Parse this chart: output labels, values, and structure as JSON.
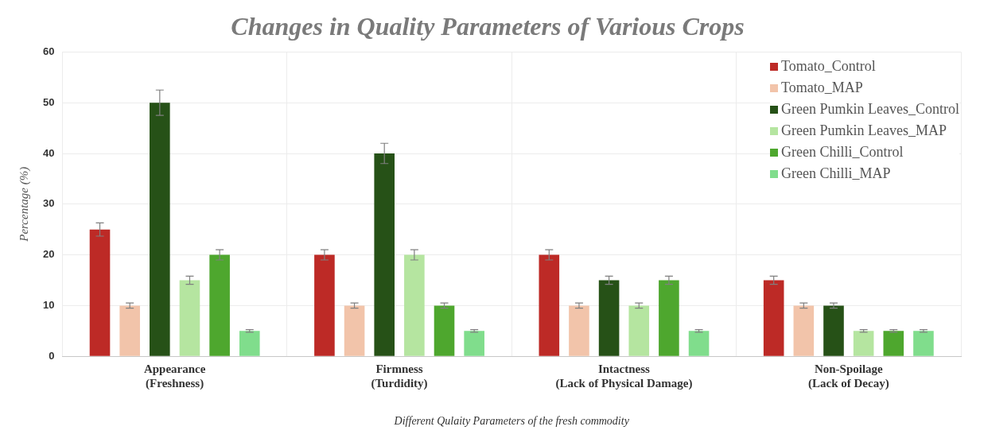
{
  "chart_data": {
    "type": "bar",
    "title": "Changes in Quality Parameters of Various Crops",
    "xlabel": "Different Qulaity Parameters of the fresh commodity",
    "ylabel": "Percentage (%)",
    "categories": [
      "Appearance\n(Freshness)",
      "Firmness\n(Turdidity)",
      "Intactness\n(Lack of Physical Damage)",
      "Non-Spoilage\n(Lack of Decay)"
    ],
    "series": [
      {
        "name": "Tomato_Control",
        "color": "#bd2a26",
        "values": [
          25,
          20,
          20,
          15
        ],
        "errors": [
          1.3,
          1,
          1,
          0.8
        ]
      },
      {
        "name": "Tomato_MAP",
        "color": "#f2c4aa",
        "values": [
          10,
          10,
          10,
          10
        ],
        "errors": [
          0.5,
          0.5,
          0.5,
          0.5
        ]
      },
      {
        "name": "Green Pumkin Leaves_Control",
        "color": "#265117",
        "values": [
          50,
          40,
          15,
          10
        ],
        "errors": [
          2.5,
          2,
          0.8,
          0.5
        ]
      },
      {
        "name": "Green Pumkin Leaves_MAP",
        "color": "#b5e5a0",
        "values": [
          15,
          20,
          10,
          5
        ],
        "errors": [
          0.8,
          1,
          0.5,
          0.25
        ]
      },
      {
        "name": "Green Chilli_Control",
        "color": "#4ea72e",
        "values": [
          20,
          10,
          15,
          5
        ],
        "errors": [
          1,
          0.5,
          0.8,
          0.25
        ]
      },
      {
        "name": "Green Chilli_MAP",
        "color": "#80dd8c",
        "values": [
          5,
          5,
          5,
          5
        ],
        "errors": [
          0.25,
          0.25,
          0.25,
          0.25
        ]
      }
    ],
    "ylim": [
      0,
      60
    ],
    "yticks": [
      0,
      10,
      20,
      30,
      40,
      50,
      60
    ],
    "grid": true,
    "legend": "top right"
  }
}
